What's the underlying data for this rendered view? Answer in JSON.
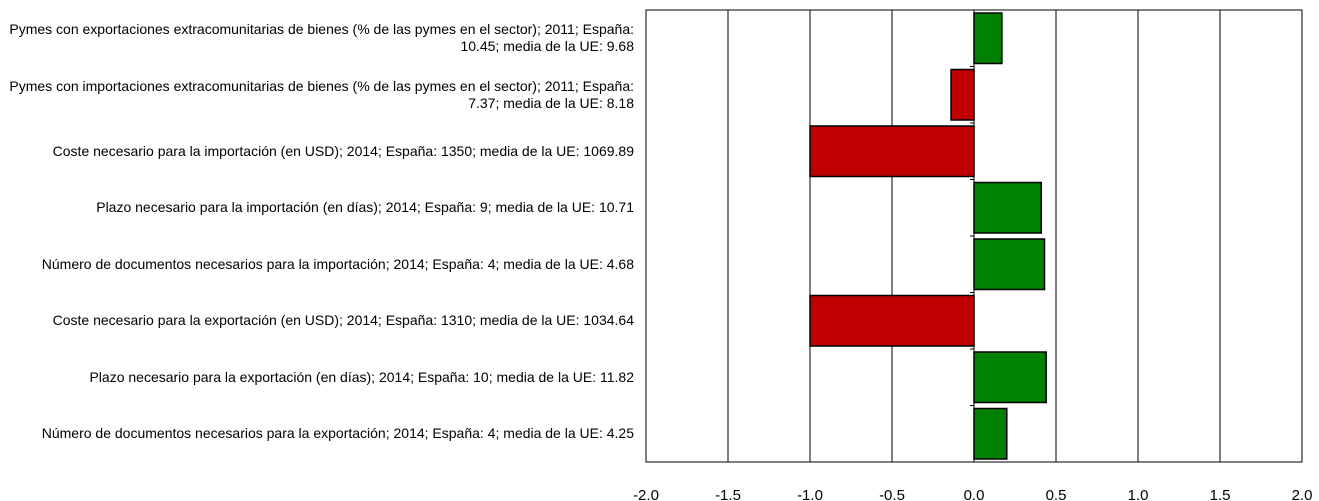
{
  "chart_data": {
    "type": "barh",
    "categories": [
      "Pymes con exportaciones extracomunitarias de bienes (% de las pymes en el sector); 2011; España: 10.45; media de la UE: 9.68",
      "Pymes con importaciones extracomunitarias de bienes (% de las pymes en el sector); 2011; España: 7.37; media de la UE: 8.18",
      "Coste necesario para la importación (en USD); 2014; España: 1350; media de la UE: 1069.89",
      "Plazo necesario para la importación (en días); 2014; España: 9; media de la UE: 10.71",
      "Número de documentos necesarios para la importación; 2014; España: 4; media de la UE: 4.68",
      "Coste necesario para la exportación (en USD); 2014; España: 1310; media de la UE: 1034.64",
      "Plazo necesario para la exportación (en días); 2014; España: 10; media de la UE: 11.82",
      "Número de documentos necesarios para la exportación; 2014; España: 4; media de la UE: 4.25"
    ],
    "values": [
      0.17,
      -0.14,
      -1.0,
      0.41,
      0.43,
      -1.0,
      0.44,
      0.2
    ],
    "colors": [
      "#008000",
      "#c00000",
      "#c00000",
      "#008000",
      "#008000",
      "#c00000",
      "#008000",
      "#008000"
    ],
    "xlim": [
      -2,
      2
    ],
    "xticks": [
      {
        "value": -2,
        "label": "-2.0"
      },
      -1.5,
      {
        "value": -1,
        "label": "-1.0"
      },
      -0.5,
      {
        "value": 0,
        "label": "0.0"
      },
      0.5,
      {
        "value": 1,
        "label": "1.0"
      },
      1.5,
      {
        "value": 2,
        "label": "2.0"
      }
    ],
    "grid": true
  }
}
